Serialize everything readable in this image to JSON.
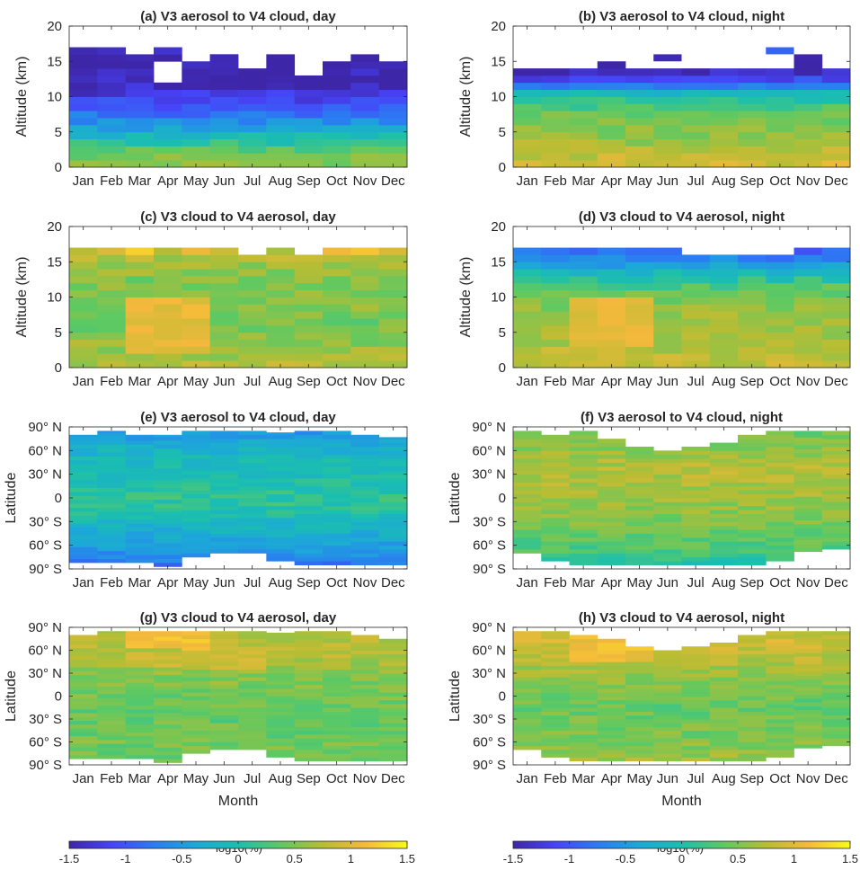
{
  "chart_data": {
    "type": "heatmap",
    "shared": {
      "months": [
        "Jan",
        "Feb",
        "Mar",
        "Apr",
        "May",
        "Jun",
        "Jul",
        "Aug",
        "Sep",
        "Oct",
        "Nov",
        "Dec"
      ],
      "xlabel": "Month",
      "colorbar_label": "log10(%)",
      "colorbar_range": [
        -1.5,
        1.5
      ],
      "colorbar_ticks": [
        "-1.5",
        "-1",
        "-0.5",
        "0",
        "0.5",
        "1",
        "1.5"
      ],
      "colormap": "parula",
      "colormap_stops": [
        "#3e26a8",
        "#4743f8",
        "#2b7cf2",
        "#1ca8d8",
        "#1bbfae",
        "#5ec962",
        "#b7bd34",
        "#f5b93c",
        "#f9fb15"
      ]
    },
    "panels": [
      {
        "title": "(a) V3 aerosol to V4 cloud, day",
        "ylabel": "Altitude (km)",
        "ylim": [
          0,
          20
        ],
        "yticks": [
          "0",
          "5",
          "10",
          "15",
          "20"
        ],
        "top_km": [
          17,
          17,
          16,
          17,
          15,
          16,
          14,
          16,
          13,
          15,
          16,
          15
        ],
        "gaps": [
          {
            "month": 4,
            "from_km": 12,
            "to_km": 15
          }
        ],
        "extra_cells": [
          {
            "month": 6,
            "from_km": 15,
            "to_km": 16,
            "value": -1.45
          }
        ],
        "profile": [
          [
            0,
            0.6
          ],
          [
            2,
            0.45
          ],
          [
            4,
            0.0
          ],
          [
            6,
            -0.5
          ],
          [
            8,
            -0.9
          ],
          [
            10,
            -1.2
          ],
          [
            11,
            -1.35
          ],
          [
            12,
            -1.45
          ],
          [
            17,
            -1.5
          ]
        ]
      },
      {
        "title": "(b) V3 aerosol to V4 cloud, night",
        "ylabel": "Altitude (km)",
        "ylim": [
          0,
          20
        ],
        "yticks": [
          "0",
          "5",
          "10",
          "15",
          "20"
        ],
        "top_km": [
          14,
          14,
          14,
          15,
          14,
          14,
          14,
          14,
          14,
          14,
          16,
          14
        ],
        "extra_cells": [
          {
            "month": 6,
            "from_km": 15,
            "to_km": 16,
            "value": -1.45
          },
          {
            "month": 10,
            "from_km": 16,
            "to_km": 17,
            "value": -0.9
          }
        ],
        "profile": [
          [
            0,
            0.95
          ],
          [
            2,
            0.8
          ],
          [
            4,
            0.6
          ],
          [
            6,
            0.5
          ],
          [
            8,
            0.35
          ],
          [
            10,
            0.0
          ],
          [
            11,
            -0.4
          ],
          [
            12,
            -0.9
          ],
          [
            13,
            -1.3
          ],
          [
            14,
            -1.5
          ]
        ]
      },
      {
        "title": "(c) V3 cloud to V4 aerosol, day",
        "ylabel": "Altitude (km)",
        "ylim": [
          0,
          20
        ],
        "yticks": [
          "0",
          "5",
          "10",
          "15",
          "20"
        ],
        "top_km": [
          17,
          17,
          17,
          17,
          17,
          17,
          16,
          17,
          16,
          17,
          17,
          17
        ],
        "profile": [
          [
            0,
            0.75
          ],
          [
            3,
            0.6
          ],
          [
            6,
            0.45
          ],
          [
            9,
            0.55
          ],
          [
            12,
            0.5
          ],
          [
            15,
            0.65
          ],
          [
            17,
            0.9
          ]
        ],
        "highlight": [
          {
            "months": [
              3,
              4,
              5
            ],
            "from_km": 2,
            "to_km": 10,
            "value": 1.05
          },
          {
            "months": [
              3,
              5,
              10,
              11
            ],
            "from_km": 16,
            "to_km": 17,
            "value": 1.2
          }
        ]
      },
      {
        "title": "(d) V3 cloud to V4 aerosol, night",
        "ylabel": "Altitude (km)",
        "ylim": [
          0,
          20
        ],
        "yticks": [
          "0",
          "5",
          "10",
          "15",
          "20"
        ],
        "top_km": [
          17,
          17,
          17,
          17,
          17,
          17,
          16,
          16,
          16,
          16,
          17,
          17
        ],
        "profile": [
          [
            0,
            0.85
          ],
          [
            4,
            0.7
          ],
          [
            8,
            0.6
          ],
          [
            11,
            0.4
          ],
          [
            13,
            0.0
          ],
          [
            15,
            -0.6
          ],
          [
            17,
            -0.95
          ]
        ],
        "highlight": [
          {
            "months": [
              3,
              4,
              5
            ],
            "from_km": 3,
            "to_km": 10,
            "value": 1.0
          }
        ]
      },
      {
        "title": "(e) V3 aerosol to V4 cloud, day",
        "ylabel": "Latitude",
        "ylim": [
          -90,
          90
        ],
        "yticks": [
          "90° S",
          "60° S",
          "30° S",
          "0",
          "30° N",
          "60° N",
          "90° N"
        ],
        "lat_range": [
          [
            -82,
            80
          ],
          [
            -82,
            85
          ],
          [
            -82,
            80
          ],
          [
            -87,
            80
          ],
          [
            -75,
            85
          ],
          [
            -70,
            85
          ],
          [
            -70,
            85
          ],
          [
            -80,
            83
          ],
          [
            -85,
            85
          ],
          [
            -85,
            85
          ],
          [
            -85,
            80
          ],
          [
            -85,
            77
          ]
        ],
        "profile": [
          [
            -90,
            -0.9
          ],
          [
            -70,
            -0.55
          ],
          [
            -45,
            -0.3
          ],
          [
            -20,
            0.0
          ],
          [
            0,
            0.15
          ],
          [
            20,
            0.0
          ],
          [
            45,
            -0.1
          ],
          [
            65,
            -0.25
          ],
          [
            90,
            -0.6
          ]
        ]
      },
      {
        "title": "(f) V3 aerosol to V4 cloud, night",
        "ylabel": "Latitude",
        "ylim": [
          -90,
          90
        ],
        "yticks": [
          "90° S",
          "60° S",
          "30° S",
          "0",
          "30° N",
          "60° N",
          "90° N"
        ],
        "lat_range": [
          [
            -70,
            85
          ],
          [
            -80,
            80
          ],
          [
            -85,
            85
          ],
          [
            -85,
            75
          ],
          [
            -85,
            65
          ],
          [
            -85,
            60
          ],
          [
            -85,
            65
          ],
          [
            -85,
            70
          ],
          [
            -85,
            80
          ],
          [
            -80,
            85
          ],
          [
            -68,
            85
          ],
          [
            -65,
            85
          ]
        ],
        "profile": [
          [
            -90,
            -0.2
          ],
          [
            -70,
            0.25
          ],
          [
            -40,
            0.45
          ],
          [
            -10,
            0.6
          ],
          [
            10,
            0.7
          ],
          [
            40,
            0.75
          ],
          [
            65,
            0.55
          ],
          [
            90,
            0.4
          ]
        ]
      },
      {
        "title": "(g) V3 cloud to V4 aerosol, day",
        "ylabel": "Latitude",
        "ylim": [
          -90,
          90
        ],
        "yticks": [
          "90° S",
          "60° S",
          "30° S",
          "0",
          "30° N",
          "60° N",
          "90° N"
        ],
        "lat_range": [
          [
            -82,
            80
          ],
          [
            -82,
            85
          ],
          [
            -82,
            85
          ],
          [
            -87,
            85
          ],
          [
            -75,
            85
          ],
          [
            -70,
            85
          ],
          [
            -70,
            85
          ],
          [
            -80,
            83
          ],
          [
            -85,
            85
          ],
          [
            -85,
            85
          ],
          [
            -85,
            80
          ],
          [
            -85,
            75
          ]
        ],
        "profile": [
          [
            -90,
            0.45
          ],
          [
            -60,
            0.45
          ],
          [
            -30,
            0.4
          ],
          [
            0,
            0.45
          ],
          [
            30,
            0.55
          ],
          [
            60,
            0.8
          ],
          [
            90,
            0.7
          ]
        ],
        "highlight": [
          {
            "months": [
              3,
              4,
              5
            ],
            "from_lat": 60,
            "to_lat": 90,
            "value": 1.15
          },
          {
            "months": [
              3,
              4,
              5,
              6,
              7
            ],
            "from_lat": 35,
            "to_lat": 60,
            "value": 0.85
          }
        ]
      },
      {
        "title": "(h) V3 cloud to V4 aerosol, night",
        "ylabel": "Latitude",
        "ylim": [
          -90,
          90
        ],
        "yticks": [
          "90° S",
          "60° S",
          "30° S",
          "0",
          "30° N",
          "60° N",
          "90° N"
        ],
        "lat_range": [
          [
            -70,
            85
          ],
          [
            -80,
            85
          ],
          [
            -85,
            80
          ],
          [
            -85,
            75
          ],
          [
            -85,
            65
          ],
          [
            -85,
            60
          ],
          [
            -85,
            65
          ],
          [
            -85,
            70
          ],
          [
            -85,
            80
          ],
          [
            -80,
            85
          ],
          [
            -68,
            85
          ],
          [
            -65,
            85
          ]
        ],
        "profile": [
          [
            -90,
            0.7
          ],
          [
            -70,
            0.55
          ],
          [
            -40,
            0.45
          ],
          [
            -10,
            0.4
          ],
          [
            10,
            0.5
          ],
          [
            40,
            0.7
          ],
          [
            70,
            0.9
          ],
          [
            90,
            0.85
          ]
        ],
        "highlight": [
          {
            "months": [
              3,
              4,
              5
            ],
            "from_lat": 45,
            "to_lat": 85,
            "value": 1.1
          }
        ]
      }
    ]
  }
}
